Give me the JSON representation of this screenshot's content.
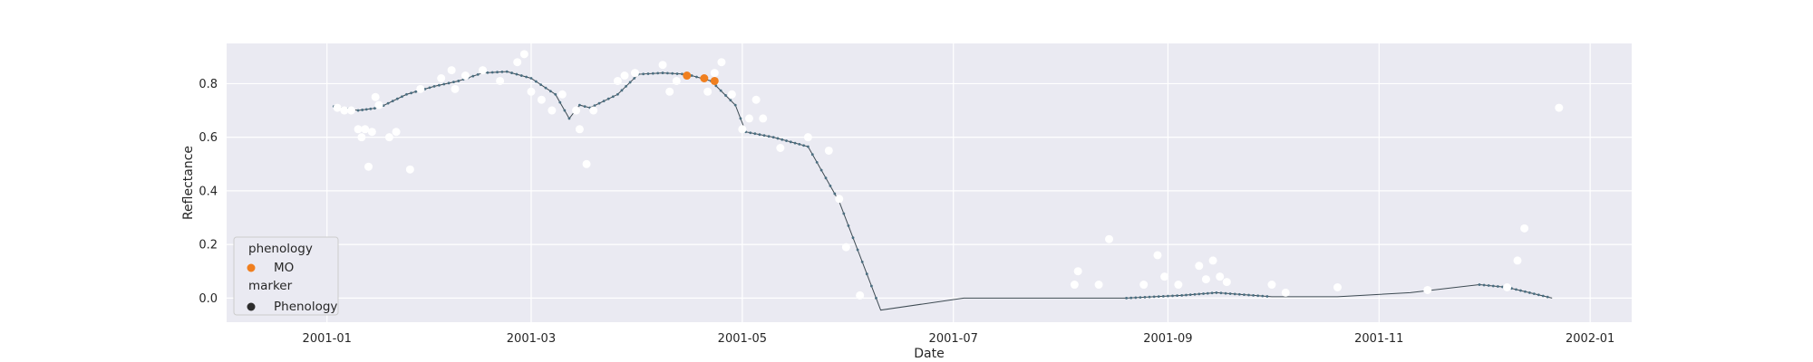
{
  "chart_data": {
    "type": "scatter",
    "title": "",
    "xlabel": "Date",
    "ylabel": "Reflectance",
    "xlim": [
      "2000-12-03",
      "2002-01-13"
    ],
    "ylim": [
      -0.09,
      0.95
    ],
    "grid": true,
    "x_tick_labels": [
      "2001-01",
      "2001-03",
      "2001-05",
      "2001-07",
      "2001-09",
      "2001-11",
      "2002-01"
    ],
    "y_tick_labels": [
      "0.0",
      "0.2",
      "0.4",
      "0.6",
      "0.8"
    ],
    "y_ticks": [
      0.0,
      0.2,
      0.4,
      0.6,
      0.8
    ],
    "legend": {
      "placement": "lower-left",
      "groups": [
        {
          "title": "phenology",
          "entries": [
            {
              "label": "MO",
              "color": "#f07f1f"
            }
          ]
        },
        {
          "title": "marker",
          "entries": [
            {
              "label": "Phenology",
              "color": "#2d2d2d"
            }
          ]
        }
      ]
    },
    "colors": {
      "background": "#eaeaf2",
      "grid": "#ffffff",
      "smoothed_line": "#3d4a52",
      "smoothed_points": "#4a6e80",
      "observations": "#ffffff",
      "phenology": "#f07f1f"
    },
    "series": [
      {
        "kind": "line",
        "x": [
          "2001-01-03",
          "2001-01-10",
          "2001-01-16",
          "2001-01-24",
          "2001-02-01",
          "2001-02-08",
          "2001-02-15",
          "2001-02-22",
          "2001-03-01",
          "2001-03-08",
          "2001-03-12",
          "2001-03-15",
          "2001-03-18",
          "2001-03-26",
          "2001-04-01",
          "2001-04-08",
          "2001-04-15",
          "2001-04-22",
          "2001-04-29",
          "2001-05-02",
          "2001-05-10",
          "2001-05-20",
          "2001-05-29",
          "2001-06-10",
          "2001-07-04",
          "2001-08-01",
          "2001-08-20",
          "2001-09-05",
          "2001-09-15",
          "2001-10-01",
          "2001-10-20",
          "2001-11-10",
          "2001-11-30",
          "2001-12-08",
          "2001-12-21"
        ],
        "y": [
          0.715,
          0.7,
          0.71,
          0.76,
          0.79,
          0.81,
          0.84,
          0.845,
          0.82,
          0.76,
          0.67,
          0.72,
          0.71,
          0.76,
          0.835,
          0.84,
          0.835,
          0.81,
          0.72,
          0.62,
          0.6,
          0.565,
          0.36,
          -0.045,
          0.0,
          0.0,
          0.0,
          0.01,
          0.02,
          0.005,
          0.005,
          0.02,
          0.05,
          0.04,
          0.0
        ]
      },
      {
        "kind": "scatter",
        "x": [
          "2001-01-04",
          "2001-01-06",
          "2001-01-08",
          "2001-01-10",
          "2001-01-11",
          "2001-01-12",
          "2001-01-13",
          "2001-01-14",
          "2001-01-15",
          "2001-01-16",
          "2001-01-19",
          "2001-01-21",
          "2001-01-25",
          "2001-01-28",
          "2001-02-03",
          "2001-02-06",
          "2001-02-07",
          "2001-02-10",
          "2001-02-15",
          "2001-02-20",
          "2001-02-25",
          "2001-02-27",
          "2001-03-01",
          "2001-03-04",
          "2001-03-07",
          "2001-03-10",
          "2001-03-14",
          "2001-03-15",
          "2001-03-17",
          "2001-03-19",
          "2001-03-26",
          "2001-03-28",
          "2001-03-31",
          "2001-04-08",
          "2001-04-10",
          "2001-04-12",
          "2001-04-21",
          "2001-04-23",
          "2001-04-25",
          "2001-04-28",
          "2001-05-01",
          "2001-05-03",
          "2001-05-05",
          "2001-05-07",
          "2001-05-12",
          "2001-05-20",
          "2001-05-26",
          "2001-05-29",
          "2001-05-31",
          "2001-06-04",
          "2001-08-05",
          "2001-08-06",
          "2001-08-12",
          "2001-08-15",
          "2001-08-25",
          "2001-08-29",
          "2001-08-31",
          "2001-09-04",
          "2001-09-10",
          "2001-09-12",
          "2001-09-14",
          "2001-09-16",
          "2001-09-18",
          "2001-10-01",
          "2001-10-05",
          "2001-10-20",
          "2001-11-15",
          "2001-12-08",
          "2001-12-11",
          "2001-12-13",
          "2001-12-23"
        ],
        "y": [
          0.71,
          0.7,
          0.7,
          0.63,
          0.6,
          0.63,
          0.49,
          0.62,
          0.75,
          0.72,
          0.6,
          0.62,
          0.48,
          0.78,
          0.82,
          0.85,
          0.78,
          0.83,
          0.85,
          0.81,
          0.88,
          0.91,
          0.77,
          0.74,
          0.7,
          0.76,
          0.7,
          0.63,
          0.5,
          0.7,
          0.81,
          0.83,
          0.84,
          0.87,
          0.77,
          0.81,
          0.77,
          0.84,
          0.88,
          0.76,
          0.63,
          0.67,
          0.74,
          0.67,
          0.56,
          0.6,
          0.55,
          0.37,
          0.19,
          0.01,
          0.05,
          0.1,
          0.05,
          0.22,
          0.05,
          0.16,
          0.08,
          0.05,
          0.12,
          0.07,
          0.14,
          0.08,
          0.06,
          0.05,
          0.02,
          0.04,
          0.03,
          0.04,
          0.14,
          0.26,
          0.71
        ]
      },
      {
        "kind": "scatter",
        "name": "MO",
        "x": [
          "2001-04-15",
          "2001-04-20",
          "2001-04-23"
        ],
        "y": [
          0.83,
          0.82,
          0.81
        ]
      }
    ]
  }
}
